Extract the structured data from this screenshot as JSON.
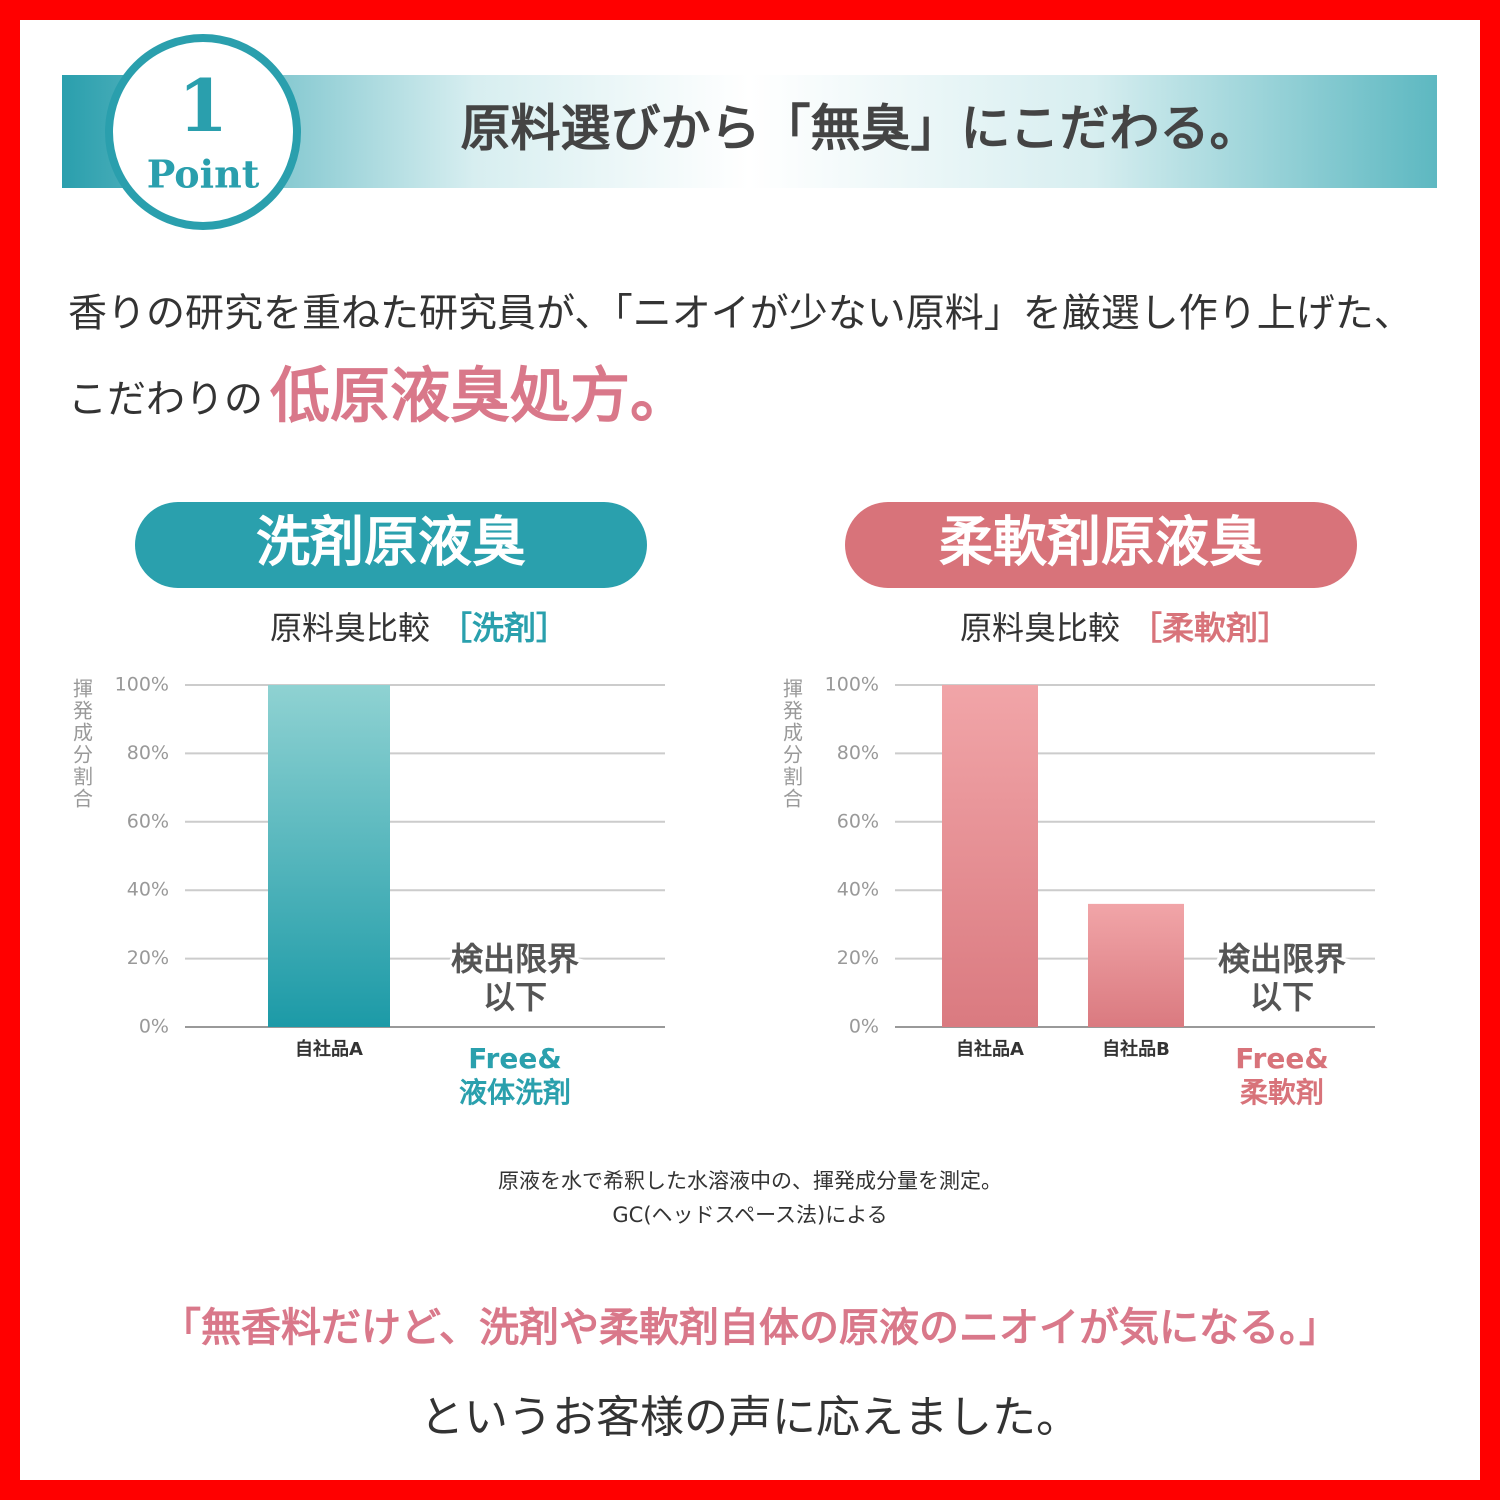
{
  "header": {
    "number": "1",
    "label": "Point",
    "title": "原料選びから「無臭」にこだわる。"
  },
  "intro": {
    "line1": "香りの研究を重ねた研究員が、「ニオイが少ない原料」を厳選し作り上げた、",
    "line2": "こだわりの",
    "emphasis": "低原液臭処方。"
  },
  "chart_data": [
    {
      "type": "bar",
      "heading": "洗剤原液臭",
      "title": "原料臭比較",
      "title_tag": "［洗剤］",
      "ylabel": "揮発成分割合",
      "categories": [
        "自社品A",
        "Free&\n液体洗剤"
      ],
      "values": [
        100,
        null
      ],
      "na_label": "検出限界\n以下",
      "color": [
        "#8fd2d2",
        "#1c9aa7"
      ],
      "accent_color": "#2aa0ad",
      "ylim": [
        0,
        100
      ],
      "yticks": [
        {
          "value": 0,
          "label": "0%"
        },
        {
          "value": 20,
          "label": "20%"
        },
        {
          "value": 40,
          "label": "40%"
        },
        {
          "value": 60,
          "label": "60%"
        },
        {
          "value": 80,
          "label": "80%"
        },
        {
          "value": 100,
          "label": "100%"
        }
      ],
      "grid": true
    },
    {
      "type": "bar",
      "heading": "柔軟剤原液臭",
      "title": "原料臭比較",
      "title_tag": "［柔軟剤］",
      "ylabel": "揮発成分割合",
      "categories": [
        "自社品A",
        "自社品B",
        "Free&\n柔軟剤"
      ],
      "values": [
        100,
        36,
        null
      ],
      "na_label": "検出限界\n以下",
      "color": [
        "#f1a5a8",
        "#da7a80"
      ],
      "accent_color": "#d8737a",
      "ylim": [
        0,
        100
      ],
      "yticks": [
        {
          "value": 0,
          "label": "0%"
        },
        {
          "value": 20,
          "label": "20%"
        },
        {
          "value": 40,
          "label": "40%"
        },
        {
          "value": 60,
          "label": "60%"
        },
        {
          "value": 80,
          "label": "80%"
        },
        {
          "value": 100,
          "label": "100%"
        }
      ],
      "grid": true
    }
  ],
  "note": {
    "line1": "原液を水で希釈した水溶液中の、揮発成分量を測定。",
    "line2": "GC(ヘッドスペース法)による"
  },
  "footer": {
    "quote": "「無香料だけど、洗剤や柔軟剤自体の原液のニオイが気になる。」",
    "line2": "というお客様の声に応えました。"
  }
}
